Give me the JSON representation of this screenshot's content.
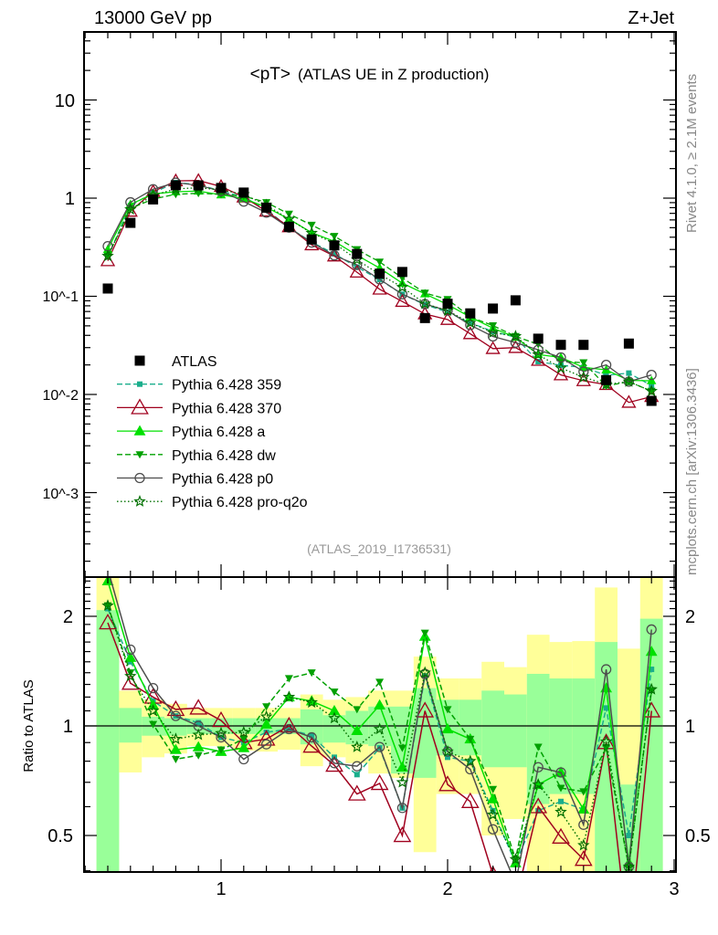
{
  "chart_data": {
    "type": "line",
    "header_left": "13000 GeV pp",
    "header_right": "Z+Jet",
    "title_main": "<pT>",
    "title_sub": "(ATLAS UE in Z production)",
    "analysis_id": "(ATLAS_2019_I1736531)",
    "side_label_top": "Rivet 4.1.0, ≥ 2.1M events",
    "side_label_bottom": "mcplots.cern.ch [arXiv:1306.3436]",
    "ratio_ylabel": "Ratio to ATLAS",
    "xlim": [
      0.4,
      3.0
    ],
    "ylim": [
      0.00014,
      50
    ],
    "yscale": "log",
    "ratio_ylim": [
      0.4,
      2.56
    ],
    "x_tick_labels": [
      "1",
      "2",
      "3"
    ],
    "y_tick_labels": [
      "10",
      "1",
      "10^-1",
      "10^-2",
      "10^-3"
    ],
    "ratio_tick_labels": [
      "2",
      "1",
      "0.5"
    ],
    "legend_position": "center-left",
    "x": [
      0.5,
      0.6,
      0.7,
      0.8,
      0.9,
      1.0,
      1.1,
      1.2,
      1.3,
      1.4,
      1.5,
      1.6,
      1.7,
      1.8,
      1.9,
      2.0,
      2.1,
      2.2,
      2.3,
      2.4,
      2.5,
      2.6,
      2.7,
      2.8,
      2.9
    ],
    "data": {
      "name": "ATLAS",
      "values": [
        0.12,
        0.56,
        0.97,
        1.35,
        1.35,
        1.27,
        1.14,
        0.8,
        0.51,
        0.38,
        0.33,
        0.27,
        0.17,
        0.177,
        0.06,
        0.084,
        0.067,
        0.075,
        0.091,
        0.037,
        0.032,
        0.032,
        0.014,
        0.033,
        0.0086
      ],
      "band_total": [
        [
          0.3,
          2.6
        ],
        [
          0.745,
          1.25
        ],
        [
          0.82,
          1.18
        ],
        [
          0.84,
          1.15
        ],
        [
          0.88,
          1.12
        ],
        [
          0.88,
          1.12
        ],
        [
          0.855,
          1.12
        ],
        [
          0.85,
          1.12
        ],
        [
          0.86,
          1.12
        ],
        [
          0.775,
          1.22
        ],
        [
          0.82,
          1.18
        ],
        [
          0.79,
          1.2
        ],
        [
          0.74,
          1.25
        ],
        [
          0.72,
          1.25
        ],
        [
          0.45,
          1.55
        ],
        [
          0.65,
          1.35
        ],
        [
          0.65,
          1.35
        ],
        [
          0.5,
          1.5
        ],
        [
          0.555,
          1.45
        ],
        [
          0.3,
          1.78
        ],
        [
          0.3,
          1.7
        ],
        [
          0.3,
          1.71
        ],
        [
          0.3,
          2.4
        ],
        [
          0.3,
          1.63
        ],
        [
          0.3,
          2.6
        ]
      ],
      "band_stat": [
        [
          0.3,
          2.08
        ],
        [
          0.9,
          1.12
        ],
        [
          0.94,
          1.06
        ],
        [
          0.94,
          1.05
        ],
        [
          0.95,
          1.05
        ],
        [
          0.95,
          1.05
        ],
        [
          0.95,
          1.05
        ],
        [
          0.95,
          1.05
        ],
        [
          0.95,
          1.05
        ],
        [
          0.89,
          1.11
        ],
        [
          0.9,
          1.07
        ],
        [
          0.89,
          1.1
        ],
        [
          0.88,
          1.13
        ],
        [
          0.74,
          1.13
        ],
        [
          0.72,
          1.27
        ],
        [
          0.83,
          1.18
        ],
        [
          0.83,
          1.18
        ],
        [
          0.77,
          1.25
        ],
        [
          0.77,
          1.22
        ],
        [
          0.61,
          1.39
        ],
        [
          0.65,
          1.35
        ],
        [
          0.65,
          1.35
        ],
        [
          0.3,
          1.7
        ],
        [
          0.3,
          0.69
        ],
        [
          0.3,
          1.97
        ]
      ],
      "color": "#000000"
    },
    "series": [
      {
        "name": "Pythia 6.428 359",
        "color": "#1aae8c",
        "dash": "6,3",
        "marker": "square-small",
        "values": [
          0.252,
          0.84,
          1.135,
          1.438,
          1.377,
          1.181,
          1.026,
          0.768,
          0.5,
          0.357,
          0.271,
          0.198,
          0.148,
          0.105,
          0.0822,
          0.0689,
          0.0536,
          0.0439,
          0.0382,
          0.0216,
          0.0198,
          0.0189,
          0.0157,
          0.0165,
          0.0123
        ],
        "ratio": [
          2.1,
          1.5,
          1.17,
          1.065,
          1.02,
          0.93,
          0.9,
          0.96,
          0.98,
          0.94,
          0.82,
          0.735,
          0.87,
          0.595,
          1.37,
          0.82,
          0.8,
          0.585,
          0.42,
          0.585,
          0.62,
          0.59,
          1.12,
          0.5,
          1.43
        ]
      },
      {
        "name": "Pythia 6.428 370",
        "color": "#a0001e",
        "dash": "",
        "marker": "triangle-up-open",
        "values": [
          0.23,
          0.734,
          1.164,
          1.499,
          1.512,
          1.314,
          1.026,
          0.736,
          0.51,
          0.334,
          0.257,
          0.176,
          0.118,
          0.0885,
          0.066,
          0.058,
          0.0415,
          0.0293,
          0.03,
          0.0222,
          0.0158,
          0.0138,
          0.0126,
          0.0083,
          0.0095
        ],
        "ratio": [
          1.92,
          1.31,
          1.2,
          1.11,
          1.12,
          1.035,
          0.9,
          0.92,
          1.0,
          0.88,
          0.78,
          0.65,
          0.695,
          0.5,
          1.1,
          0.69,
          0.62,
          0.39,
          0.33,
          0.6,
          0.495,
          0.43,
          0.9,
          0.25,
          1.1
        ]
      },
      {
        "name": "Pythia 6.428 a",
        "color": "#00e000",
        "dash": "",
        "marker": "triangle-up",
        "values": [
          0.3,
          0.862,
          1.106,
          1.161,
          1.181,
          1.08,
          0.992,
          0.808,
          0.612,
          0.445,
          0.363,
          0.262,
          0.194,
          0.136,
          0.106,
          0.0823,
          0.0616,
          0.0473,
          0.0382,
          0.0255,
          0.0238,
          0.0189,
          0.0178,
          0.0139,
          0.0138
        ],
        "ratio": [
          2.5,
          1.54,
          1.14,
          0.86,
          0.875,
          0.85,
          0.87,
          1.01,
          1.2,
          1.17,
          1.1,
          0.97,
          1.14,
          0.77,
          1.76,
          0.98,
          0.92,
          0.63,
          0.42,
          0.69,
          0.745,
          0.59,
          1.27,
          0.42,
          1.6
        ]
      },
      {
        "name": "Pythia 6.428 dw",
        "color": "#00a000",
        "dash": "6,3",
        "marker": "triangle-down",
        "values": [
          0.257,
          0.784,
          0.98,
          1.094,
          1.121,
          1.092,
          1.049,
          0.904,
          0.689,
          0.532,
          0.409,
          0.3,
          0.224,
          0.154,
          0.108,
          0.0932,
          0.0616,
          0.0503,
          0.0391,
          0.0324,
          0.0216,
          0.0211,
          0.0122,
          0.0135,
          0.0108
        ],
        "ratio": [
          2.14,
          1.4,
          1.01,
          0.81,
          0.83,
          0.86,
          0.92,
          1.13,
          1.35,
          1.4,
          1.24,
          1.11,
          1.32,
          0.87,
          1.8,
          1.11,
          0.92,
          0.67,
          0.43,
          0.875,
          0.675,
          0.66,
          0.87,
          0.41,
          1.25
        ]
      },
      {
        "name": "Pythia 6.428 p0",
        "color": "#4d4d4d",
        "dash": "",
        "marker": "circle-open",
        "values": [
          0.324,
          0.907,
          1.232,
          1.438,
          1.35,
          1.181,
          0.923,
          0.712,
          0.5,
          0.353,
          0.261,
          0.209,
          0.149,
          0.105,
          0.0834,
          0.0714,
          0.0509,
          0.039,
          0.0337,
          0.0285,
          0.0238,
          0.0171,
          0.02,
          0.0135,
          0.0158
        ],
        "ratio": [
          2.7,
          1.62,
          1.27,
          1.065,
          1.0,
          0.93,
          0.81,
          0.89,
          0.98,
          0.93,
          0.79,
          0.775,
          0.875,
          0.595,
          1.39,
          0.85,
          0.76,
          0.52,
          0.37,
          0.77,
          0.745,
          0.535,
          1.43,
          0.41,
          1.84
        ]
      },
      {
        "name": "Pythia 6.428 pro-q2o",
        "color": "#007000",
        "dash": "1.5,2.5",
        "marker": "star-open",
        "values": [
          0.257,
          0.767,
          1.067,
          1.242,
          1.276,
          1.213,
          1.094,
          0.848,
          0.612,
          0.441,
          0.347,
          0.236,
          0.167,
          0.124,
          0.084,
          0.0714,
          0.0536,
          0.0428,
          0.0391,
          0.0255,
          0.0186,
          0.015,
          0.0127,
          0.0135,
          0.0108
        ],
        "ratio": [
          2.14,
          1.37,
          1.1,
          0.92,
          0.945,
          0.955,
          0.96,
          1.06,
          1.2,
          1.16,
          1.05,
          0.875,
          0.98,
          0.7,
          1.4,
          0.85,
          0.8,
          0.57,
          0.43,
          0.69,
          0.58,
          0.47,
          0.905,
          0.41,
          1.26
        ]
      }
    ],
    "band_colors": {
      "total": "#ffff99",
      "stat": "#99ff99"
    }
  }
}
